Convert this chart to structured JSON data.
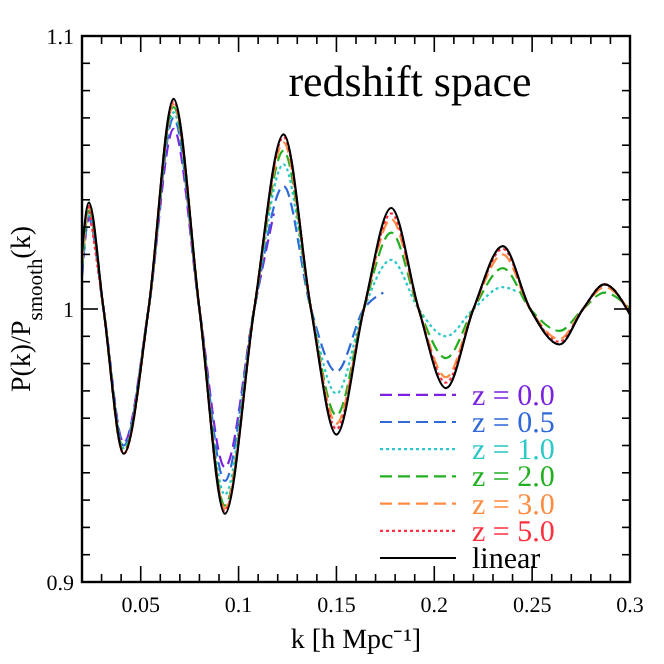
{
  "chart_data": {
    "type": "line",
    "title": "redshift space",
    "xlabel": "k [h Mpc⁻¹]",
    "ylabel": "P(k)/P$_{smooth}$(k)",
    "xlim": [
      0.02,
      0.3
    ],
    "ylim": [
      0.9,
      1.1
    ],
    "xticks": [
      {
        "value": 0.02,
        "label": null
      },
      {
        "value": 0.03,
        "label": null
      },
      {
        "value": 0.04,
        "label": null
      },
      0.05,
      {
        "value": 0.06,
        "label": null
      },
      {
        "value": 0.07,
        "label": null
      },
      {
        "value": 0.08,
        "label": null
      },
      {
        "value": 0.09,
        "label": null
      },
      0.1,
      {
        "value": 0.11,
        "label": null
      },
      {
        "value": 0.12,
        "label": null
      },
      {
        "value": 0.13,
        "label": null
      },
      {
        "value": 0.14,
        "label": null
      },
      0.15,
      {
        "value": 0.16,
        "label": null
      },
      {
        "value": 0.17,
        "label": null
      },
      {
        "value": 0.18,
        "label": null
      },
      {
        "value": 0.19,
        "label": null
      },
      0.2,
      {
        "value": 0.21,
        "label": null
      },
      {
        "value": 0.22,
        "label": null
      },
      {
        "value": 0.23,
        "label": null
      },
      {
        "value": 0.24,
        "label": null
      },
      0.25,
      {
        "value": 0.26,
        "label": null
      },
      {
        "value": 0.27,
        "label": null
      },
      {
        "value": 0.28,
        "label": null
      },
      {
        "value": 0.29,
        "label": null
      },
      0.3
    ],
    "yticks": [
      0.9,
      {
        "value": 0.91,
        "label": null
      },
      {
        "value": 0.92,
        "label": null
      },
      {
        "value": 0.93,
        "label": null
      },
      {
        "value": 0.94,
        "label": null
      },
      {
        "value": 0.95,
        "label": null
      },
      {
        "value": 0.96,
        "label": null
      },
      {
        "value": 0.97,
        "label": null
      },
      {
        "value": 0.98,
        "label": null
      },
      {
        "value": 0.99,
        "label": null
      },
      1,
      {
        "value": 1.01,
        "label": null
      },
      {
        "value": 1.02,
        "label": null
      },
      {
        "value": 1.03,
        "label": null
      },
      {
        "value": 1.04,
        "label": null
      },
      {
        "value": 1.05,
        "label": null
      },
      {
        "value": 1.06,
        "label": null
      },
      {
        "value": 1.07,
        "label": null
      },
      {
        "value": 1.08,
        "label": null
      },
      {
        "value": 1.09,
        "label": null
      },
      1.1
    ],
    "legend": "bottom right",
    "grid": false,
    "marker": "none",
    "series": [
      {
        "name": "z = 0.0",
        "color": "#7b22e0",
        "line_style": "dashed",
        "x": [
          0.02,
          0.0235,
          0.031,
          0.0413,
          0.054,
          0.0668,
          0.08,
          0.093,
          0.108,
          0.118
        ],
        "values": [
          1.012,
          1.033,
          1.0,
          0.951,
          1.0,
          1.066,
          1.0,
          0.942,
          1.0,
          1.035
        ]
      },
      {
        "name": "z = 0.5",
        "color": "#2f6ad8",
        "line_style": "dashed",
        "x": [
          0.02,
          0.0235,
          0.031,
          0.0413,
          0.054,
          0.0668,
          0.08,
          0.093,
          0.108,
          0.123,
          0.137,
          0.15,
          0.164,
          0.174
        ],
        "values": [
          1.013,
          1.034,
          1.0,
          0.95,
          1.0,
          1.07,
          1.0,
          0.937,
          1.0,
          1.045,
          1.0,
          0.977,
          1.0,
          1.006
        ]
      },
      {
        "name": "z = 1.0",
        "color": "#2ec8c8",
        "line_style": "dotted",
        "x": [
          0.02,
          0.0235,
          0.031,
          0.0413,
          0.054,
          0.0668,
          0.08,
          0.093,
          0.108,
          0.123,
          0.137,
          0.15,
          0.164,
          0.178,
          0.192,
          0.206,
          0.22,
          0.235,
          0.243
        ],
        "values": [
          1.014,
          1.035,
          1.0,
          0.949,
          1.0,
          1.072,
          1.0,
          0.932,
          1.0,
          1.053,
          1.0,
          0.969,
          1.0,
          1.018,
          1.0,
          0.99,
          1.0,
          1.008,
          1.006
        ]
      },
      {
        "name": "z = 2.0",
        "color": "#22b022",
        "line_style": "dashed",
        "x": [
          0.02,
          0.0235,
          0.031,
          0.0413,
          0.054,
          0.0668,
          0.08,
          0.093,
          0.108,
          0.123,
          0.137,
          0.15,
          0.164,
          0.178,
          0.192,
          0.206,
          0.22,
          0.235,
          0.249,
          0.264,
          0.276,
          0.287,
          0.3
        ],
        "values": [
          1.015,
          1.036,
          1.0,
          0.948,
          1.0,
          1.074,
          1.0,
          0.928,
          1.0,
          1.058,
          1.0,
          0.961,
          1.0,
          1.028,
          1.0,
          0.982,
          1.0,
          1.015,
          1.0,
          0.992,
          1.0,
          1.006,
          1.0
        ]
      },
      {
        "name": "z = 3.0",
        "color": "#ff8c40",
        "line_style": "dashed",
        "x": [
          0.02,
          0.0235,
          0.031,
          0.0413,
          0.054,
          0.0668,
          0.08,
          0.093,
          0.108,
          0.123,
          0.137,
          0.15,
          0.164,
          0.178,
          0.192,
          0.206,
          0.22,
          0.235,
          0.249,
          0.264,
          0.276,
          0.287,
          0.3
        ],
        "values": [
          1.017,
          1.037,
          1.0,
          0.947,
          1.0,
          1.075,
          1.0,
          0.927,
          1.0,
          1.061,
          1.0,
          0.958,
          1.0,
          1.033,
          1.0,
          0.975,
          1.0,
          1.02,
          1.0,
          0.989,
          1.0,
          1.008,
          0.999
        ]
      },
      {
        "name": "z = 5.0",
        "color": "#ff3040",
        "line_style": "dotted",
        "x": [
          0.0235,
          0.031,
          0.0413,
          0.054,
          0.0668,
          0.08,
          0.093,
          0.108,
          0.123,
          0.137,
          0.15,
          0.164,
          0.178,
          0.192,
          0.206,
          0.22,
          0.235,
          0.249,
          0.264,
          0.276,
          0.287,
          0.3
        ],
        "values": [
          1.038,
          1.0,
          0.947,
          1.0,
          1.076,
          1.0,
          0.926,
          1.0,
          1.063,
          1.0,
          0.956,
          1.0,
          1.035,
          1.0,
          0.973,
          1.0,
          1.022,
          1.0,
          0.988,
          1.0,
          1.009,
          0.998
        ]
      },
      {
        "name": "linear",
        "color": "#000000",
        "line_style": "solid",
        "x": [
          0.02,
          0.0235,
          0.031,
          0.0413,
          0.054,
          0.0668,
          0.08,
          0.093,
          0.108,
          0.123,
          0.137,
          0.15,
          0.164,
          0.178,
          0.192,
          0.206,
          0.22,
          0.235,
          0.249,
          0.264,
          0.276,
          0.287,
          0.3
        ],
        "values": [
          1.021,
          1.039,
          1.0,
          0.947,
          1.0,
          1.077,
          1.0,
          0.925,
          1.0,
          1.064,
          1.0,
          0.954,
          1.0,
          1.037,
          1.0,
          0.971,
          1.0,
          1.023,
          1.0,
          0.987,
          1.0,
          1.009,
          0.998
        ]
      }
    ]
  }
}
